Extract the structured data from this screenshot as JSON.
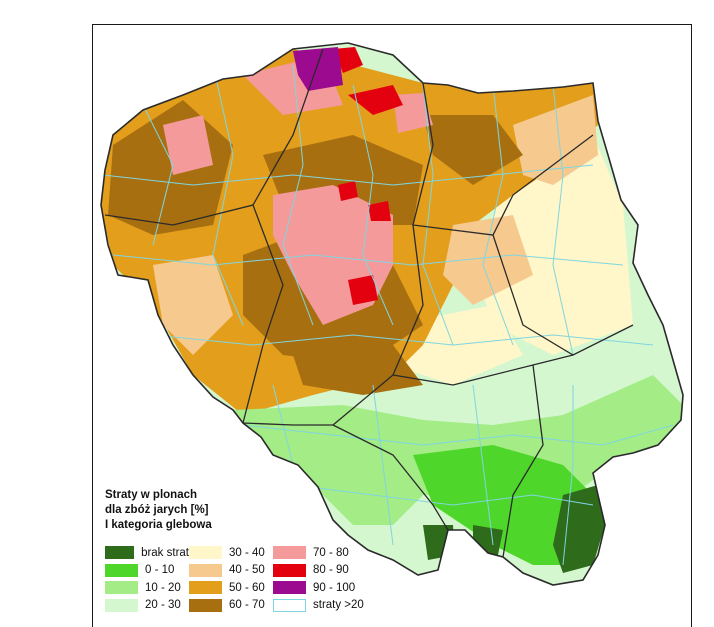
{
  "legend": {
    "title_line1": "Straty w plonach",
    "title_line2": "dla zbóż jarych [%]",
    "title_line3": "I kategoria glebowa",
    "items": [
      {
        "label": "brak strat",
        "color": "#2e6b1a"
      },
      {
        "label": "0 - 10",
        "color": "#4fd62a"
      },
      {
        "label": "10 - 20",
        "color": "#a3ec86"
      },
      {
        "label": "20 - 30",
        "color": "#d4f7cf"
      },
      {
        "label": "30 - 40",
        "color": "#fff6c9"
      },
      {
        "label": "40 - 50",
        "color": "#f6c98f"
      },
      {
        "label": "50 - 60",
        "color": "#e39e1c"
      },
      {
        "label": "60 - 70",
        "color": "#a86f10"
      },
      {
        "label": "70 - 80",
        "color": "#f59a9a"
      },
      {
        "label": "80 - 90",
        "color": "#e3000f"
      },
      {
        "label": "90 - 100",
        "color": "#9b0a8f"
      },
      {
        "label": "straty >20",
        "color": "#7fd6e0",
        "outline": true
      }
    ]
  },
  "colors": {
    "boundary": "#7fd6e0",
    "province": "#2a2a2a"
  }
}
